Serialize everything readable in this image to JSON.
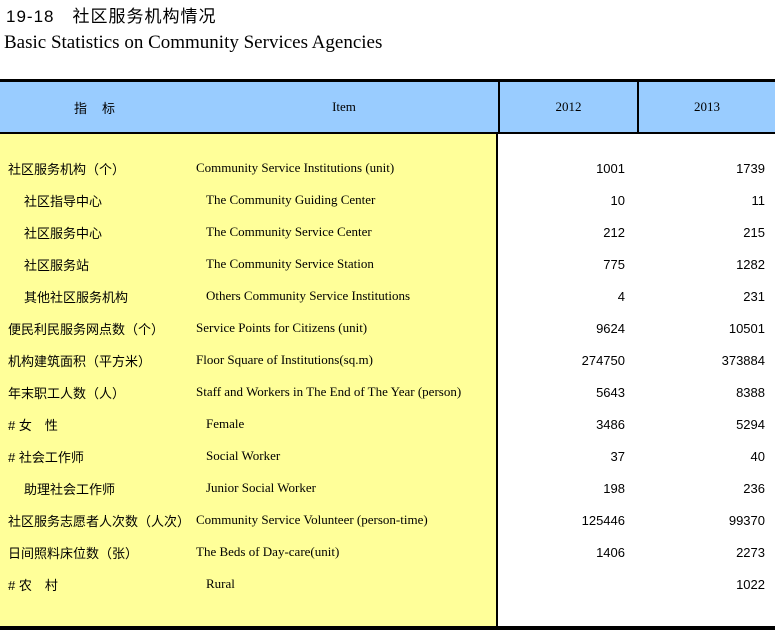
{
  "title": {
    "zh": "19-18　社区服务机构情况",
    "en": "Basic Statistics on Community Services Agencies"
  },
  "colors": {
    "header_bg": "#99CCFF",
    "body_left_bg": "#FFFF99",
    "border": "#000000"
  },
  "table": {
    "header": {
      "indicator": "指　标",
      "item": "Item",
      "year1": "2012",
      "year2": "2013"
    },
    "rows": [
      {
        "zh": "社区服务机构（个）",
        "en": "Community Service Institutions (unit)",
        "v2012": "1001",
        "v2013": "1739"
      },
      {
        "zh": "社区指导中心",
        "en": "The Community Guiding Center",
        "v2012": "10",
        "v2013": "11"
      },
      {
        "zh": "社区服务中心",
        "en": "The Community Service Center",
        "v2012": "212",
        "v2013": "215"
      },
      {
        "zh": "社区服务站",
        "en": "The Community Service Station",
        "v2012": "775",
        "v2013": "1282"
      },
      {
        "zh": "其他社区服务机构",
        "en": "Others Community Service Institutions",
        "v2012": "4",
        "v2013": "231"
      },
      {
        "zh": "便民利民服务网点数（个）",
        "en": "Service Points for Citizens (unit)",
        "v2012": "9624",
        "v2013": "10501"
      },
      {
        "zh": "机构建筑面积（平方米）",
        "en": "Floor Square of Institutions(sq.m)",
        "v2012": "274750",
        "v2013": "373884"
      },
      {
        "zh": "年末职工人数（人）",
        "en": "Staff and Workers in The End of The Year (person)",
        "v2012": "5643",
        "v2013": "8388"
      },
      {
        "zh": "# 女　性",
        "en": "Female",
        "v2012": "3486",
        "v2013": "5294"
      },
      {
        "zh": "# 社会工作师",
        "en": "Social Worker",
        "v2012": "37",
        "v2013": "40"
      },
      {
        "zh": "助理社会工作师",
        "en": "Junior Social Worker",
        "v2012": "198",
        "v2013": "236"
      },
      {
        "zh": "社区服务志愿者人次数（人次）",
        "en": "Community Service Volunteer (person-time)",
        "v2012": "125446",
        "v2013": "99370"
      },
      {
        "zh": "日间照料床位数（张）",
        "en": "The Beds of Day-care(unit)",
        "v2012": "1406",
        "v2013": "2273"
      },
      {
        "zh": "# 农　村",
        "en": "Rural",
        "v2012": "",
        "v2013": "1022"
      }
    ]
  }
}
